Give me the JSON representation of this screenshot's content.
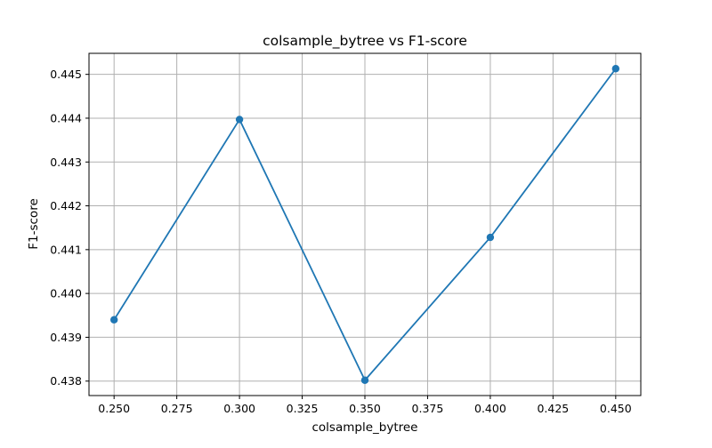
{
  "chart_data": {
    "type": "line",
    "title": "colsample_bytree vs F1-score",
    "xlabel": "colsample_bytree",
    "ylabel": "F1-score",
    "x": [
      0.25,
      0.3,
      0.35,
      0.4,
      0.45
    ],
    "series": [
      {
        "values": [
          0.4394,
          0.44397,
          0.43802,
          0.44128,
          0.44513
        ]
      }
    ],
    "xlim": [
      0.24,
      0.46
    ],
    "ylim": [
      0.43767,
      0.44548
    ],
    "xticks": [
      "0.250",
      "0.275",
      "0.300",
      "0.325",
      "0.350",
      "0.375",
      "0.400",
      "0.425",
      "0.450"
    ],
    "yticks": [
      "0.438",
      "0.439",
      "0.440",
      "0.441",
      "0.442",
      "0.443",
      "0.444",
      "0.445"
    ],
    "grid": true,
    "markers": true,
    "line_color": "#1f77b4",
    "grid_color": "#b0b0b0"
  }
}
